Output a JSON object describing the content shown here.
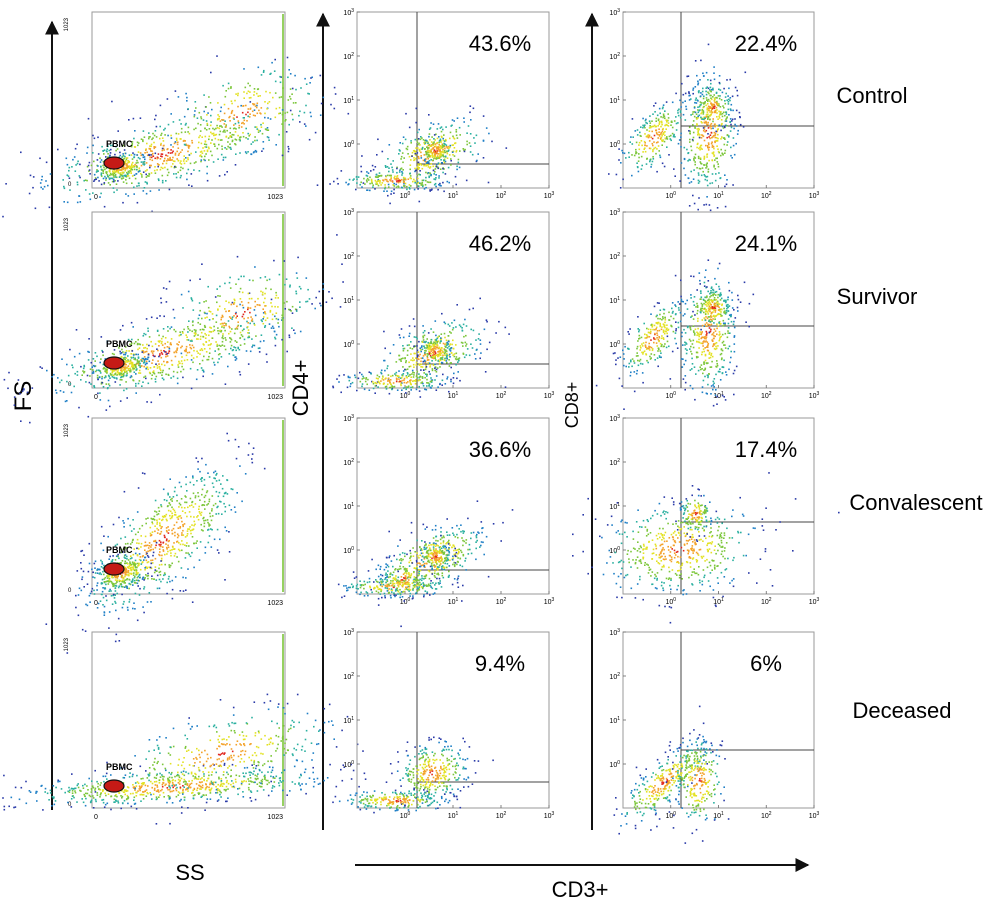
{
  "labels": {
    "fs": "FS",
    "ss": "SS",
    "cd4": "CD4+",
    "cd8": "CD8+",
    "cd3": "CD3+",
    "gate": "PBMC"
  },
  "rows": [
    "Control",
    "Survivor",
    "Convalescent",
    "Deceased"
  ],
  "colors": {
    "gradient": [
      "#2a3aa8",
      "#1f7fc6",
      "#2bb0a0",
      "#7cc63a",
      "#e3e224",
      "#f3a22a",
      "#e0271f"
    ],
    "axis": "#111111",
    "quadrant": "#444444",
    "frame": "#9a9a9a"
  },
  "chart_data": [
    {
      "type": "scatter",
      "panel": "FS vs SS (PBMC gate)",
      "xlabel": "SS",
      "ylabel": "FS",
      "xlim": [
        0,
        1023
      ],
      "ylim": [
        0,
        1023
      ],
      "x_ticks": [
        "0",
        "1023"
      ],
      "y_ticks": [
        "0",
        "1023"
      ],
      "gate_label": "PBMC",
      "series": [
        {
          "name": "Control"
        },
        {
          "name": "Survivor"
        },
        {
          "name": "Convalescent"
        },
        {
          "name": "Deceased"
        }
      ]
    },
    {
      "type": "scatter",
      "panel": "CD4+ vs CD3+",
      "xlabel": "CD3+",
      "ylabel": "CD4+",
      "xscale": "log",
      "xlim": [
        0.1,
        1000
      ],
      "ylim": [
        0.1,
        1000
      ],
      "x_ticks": [
        "10^0",
        "10^1",
        "10^2",
        "10^3"
      ],
      "y_ticks": [
        "10^0",
        "10^1",
        "10^2",
        "10^3"
      ],
      "series": [
        {
          "name": "Control",
          "upper_right_percent": "43.6%"
        },
        {
          "name": "Survivor",
          "upper_right_percent": "46.2%"
        },
        {
          "name": "Convalescent",
          "upper_right_percent": "36.6%"
        },
        {
          "name": "Deceased",
          "upper_right_percent": "9.4%"
        }
      ]
    },
    {
      "type": "scatter",
      "panel": "CD8+ vs CD3+",
      "xlabel": "CD3+",
      "ylabel": "CD8+",
      "xscale": "log",
      "xlim": [
        0.1,
        1000
      ],
      "ylim": [
        0.1,
        1000
      ],
      "x_ticks": [
        "10^0",
        "10^1",
        "10^2",
        "10^3"
      ],
      "y_ticks": [
        "10^0",
        "10^1",
        "10^2",
        "10^3"
      ],
      "series": [
        {
          "name": "Control",
          "upper_right_percent": "22.4%"
        },
        {
          "name": "Survivor",
          "upper_right_percent": "24.1%"
        },
        {
          "name": "Convalescent",
          "upper_right_percent": "17.4%"
        },
        {
          "name": "Deceased",
          "upper_right_percent": "6%"
        }
      ]
    }
  ]
}
